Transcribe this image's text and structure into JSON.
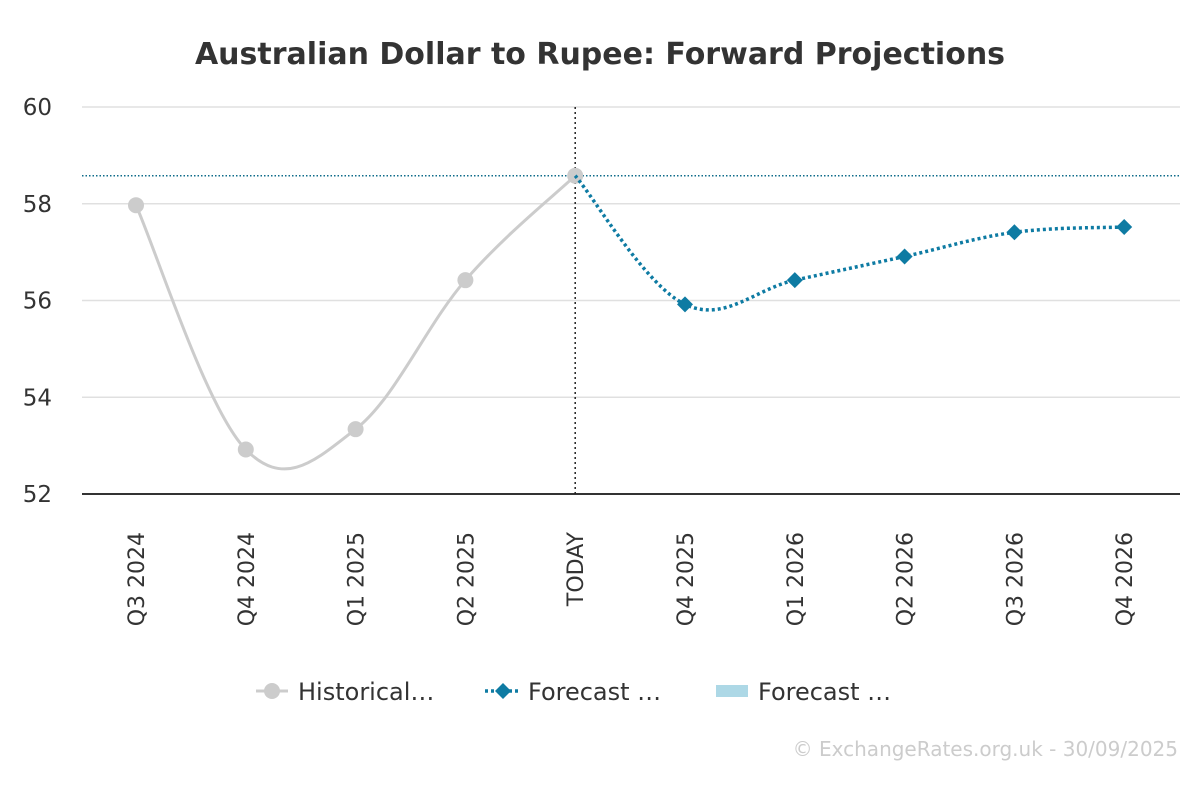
{
  "chart_data": {
    "type": "line",
    "title": "Australian Dollar to Rupee: Forward Projections",
    "categories": [
      "Q3 2024",
      "Q4 2024",
      "Q1 2025",
      "Q2 2025",
      "TODAY",
      "Q4 2025",
      "Q1 2026",
      "Q2 2026",
      "Q3 2026",
      "Q4 2026"
    ],
    "ylim": [
      52,
      60
    ],
    "yticks": [
      52,
      54,
      56,
      58,
      60
    ],
    "grid": true,
    "today_marker": "TODAY",
    "today_value": 58.58,
    "legend_position": "bottom",
    "series": [
      {
        "name": "Historical…",
        "color": "#cccccc",
        "marker": "circle",
        "line_style": "solid",
        "x": [
          "Q3 2024",
          "Q4 2024",
          "Q1 2025",
          "Q2 2025",
          "TODAY"
        ],
        "values": [
          57.97,
          52.92,
          53.34,
          56.42,
          58.58
        ]
      },
      {
        "name": "Forecast …",
        "color": "#0e7ba3",
        "marker": "diamond",
        "line_style": "dotted",
        "x": [
          "TODAY",
          "Q4 2025",
          "Q1 2026",
          "Q2 2026",
          "Q3 2026",
          "Q4 2026"
        ],
        "values": [
          58.58,
          55.92,
          56.42,
          56.91,
          57.41,
          57.52
        ]
      },
      {
        "name": "Forecast …",
        "color": "#add8e6",
        "marker": "box",
        "line_style": "none",
        "x": [],
        "values": []
      }
    ],
    "credit": "© ExchangeRates.org.uk - 30/09/2025"
  }
}
